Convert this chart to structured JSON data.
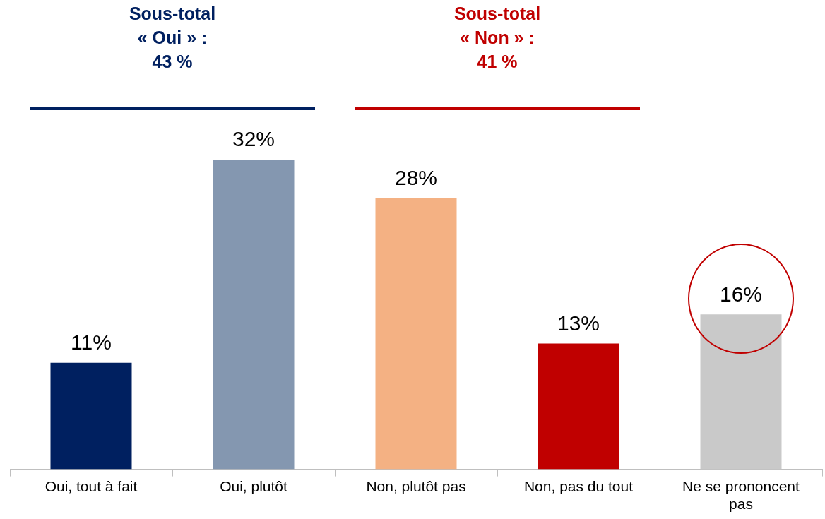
{
  "chart_data": {
    "type": "bar",
    "categories": [
      "Oui, tout à fait",
      "Oui, plutôt",
      "Non, plutôt pas",
      "Non, pas du tout",
      "Ne se prononcent pas"
    ],
    "values": [
      11,
      32,
      28,
      13,
      16
    ],
    "colors": [
      "#002060",
      "#8497b0",
      "#f4b183",
      "#c00000",
      "#c9c9c9"
    ],
    "value_labels": [
      "11%",
      "32%",
      "28%",
      "13%",
      "16%"
    ],
    "annotations": [
      "Sous-total\n« Oui » :\n43 %",
      "Sous-total\n« Non » :\n41 %"
    ]
  }
}
